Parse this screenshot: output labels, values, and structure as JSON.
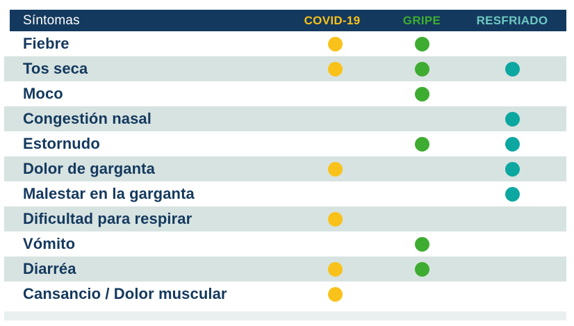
{
  "table": {
    "header": {
      "symptom_label": "Síntomas",
      "columns": [
        {
          "key": "covid",
          "label": "COVID-19",
          "text_color": "#F9C21A"
        },
        {
          "key": "gripe",
          "label": "GRIPE",
          "text_color": "#3CAE2E"
        },
        {
          "key": "resfriado",
          "label": "RESFRIADO",
          "text_color": "#6EC8C1"
        }
      ]
    },
    "dot_colors": {
      "covid": "#F9C21A",
      "gripe": "#3EAC31",
      "resfriado": "#0BA7A0"
    },
    "colors": {
      "header_bg": "#14395E",
      "row_text": "#14395E",
      "stripe_bg": "#D7E3E1",
      "bottom_stripe_bg": "#E9F0EF",
      "page_bg": "#FFFFFF"
    },
    "rows": [
      {
        "symptom": "Fiebre",
        "covid": true,
        "gripe": true,
        "resfriado": false
      },
      {
        "symptom": "Tos seca",
        "covid": true,
        "gripe": true,
        "resfriado": true
      },
      {
        "symptom": "Moco",
        "covid": false,
        "gripe": true,
        "resfriado": false
      },
      {
        "symptom": "Congestión nasal",
        "covid": false,
        "gripe": false,
        "resfriado": true
      },
      {
        "symptom": "Estornudo",
        "covid": false,
        "gripe": true,
        "resfriado": true
      },
      {
        "symptom": "Dolor de garganta",
        "covid": true,
        "gripe": false,
        "resfriado": true
      },
      {
        "symptom": "Malestar en la garganta",
        "covid": false,
        "gripe": false,
        "resfriado": true
      },
      {
        "symptom": "Dificultad para respirar",
        "covid": true,
        "gripe": false,
        "resfriado": false
      },
      {
        "symptom": "Vómito",
        "covid": false,
        "gripe": true,
        "resfriado": false
      },
      {
        "symptom": "Diarréa",
        "covid": true,
        "gripe": true,
        "resfriado": false
      },
      {
        "symptom": "Cansancio / Dolor muscular",
        "covid": true,
        "gripe": false,
        "resfriado": false
      }
    ]
  },
  "chart_data": {
    "type": "table",
    "title": "",
    "columns": [
      "Síntomas",
      "COVID-19",
      "GRIPE",
      "RESFRIADO"
    ],
    "rows": [
      [
        "Fiebre",
        true,
        true,
        false
      ],
      [
        "Tos seca",
        true,
        true,
        true
      ],
      [
        "Moco",
        false,
        true,
        false
      ],
      [
        "Congestión nasal",
        false,
        false,
        true
      ],
      [
        "Estornudo",
        false,
        true,
        true
      ],
      [
        "Dolor de garganta",
        true,
        false,
        true
      ],
      [
        "Malestar en la garganta",
        false,
        false,
        true
      ],
      [
        "Dificultad para respirar",
        true,
        false,
        false
      ],
      [
        "Vómito",
        false,
        true,
        false
      ],
      [
        "Diarréa",
        true,
        true,
        false
      ],
      [
        "Cansancio / Dolor muscular",
        true,
        false,
        false
      ]
    ],
    "legend": {
      "COVID-19": "#F9C21A",
      "GRIPE": "#3EAC31",
      "RESFRIADO": "#0BA7A0"
    },
    "notes": "Dot present = symptom applies to that illness; striped alternating rows"
  }
}
